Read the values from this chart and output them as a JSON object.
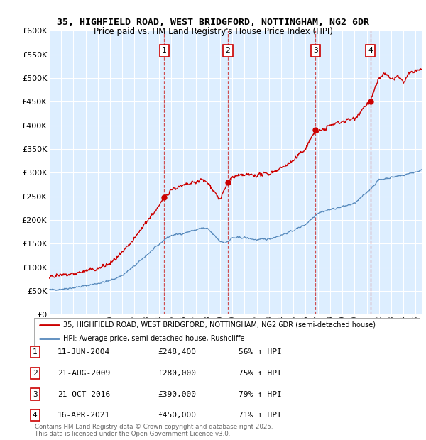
{
  "title_line1": "35, HIGHFIELD ROAD, WEST BRIDGFORD, NOTTINGHAM, NG2 6DR",
  "title_line2": "Price paid vs. HM Land Registry's House Price Index (HPI)",
  "plot_bg_color": "#ddeeff",
  "ylim": [
    0,
    600000
  ],
  "yticks": [
    0,
    50000,
    100000,
    150000,
    200000,
    250000,
    300000,
    350000,
    400000,
    450000,
    500000,
    550000,
    600000
  ],
  "hpi_color": "#5588bb",
  "price_color": "#cc0000",
  "legend_label_price": "35, HIGHFIELD ROAD, WEST BRIDGFORD, NOTTINGHAM, NG2 6DR (semi-detached house)",
  "legend_label_hpi": "HPI: Average price, semi-detached house, Rushcliffe",
  "transactions": [
    {
      "num": 1,
      "date": "11-JUN-2004",
      "price": 248400,
      "pct": "56%",
      "x_year": 2004.44
    },
    {
      "num": 2,
      "date": "21-AUG-2009",
      "price": 280000,
      "pct": "75%",
      "x_year": 2009.64
    },
    {
      "num": 3,
      "date": "21-OCT-2016",
      "price": 390000,
      "pct": "79%",
      "x_year": 2016.8
    },
    {
      "num": 4,
      "date": "16-APR-2021",
      "price": 450000,
      "pct": "71%",
      "x_year": 2021.29
    }
  ],
  "footnote_line1": "Contains HM Land Registry data © Crown copyright and database right 2025.",
  "footnote_line2": "This data is licensed under the Open Government Licence v3.0.",
  "xlim_start": 1995.0,
  "xlim_end": 2025.5,
  "hpi_seed_values": [
    [
      1995.0,
      52000
    ],
    [
      1996.0,
      54000
    ],
    [
      1997.0,
      57000
    ],
    [
      1998.0,
      61000
    ],
    [
      1999.0,
      66000
    ],
    [
      2000.0,
      72000
    ],
    [
      2001.0,
      83000
    ],
    [
      2002.0,
      103000
    ],
    [
      2003.0,
      126000
    ],
    [
      2004.0,
      148000
    ],
    [
      2004.5,
      160000
    ],
    [
      2005.0,
      167000
    ],
    [
      2006.0,
      172000
    ],
    [
      2007.0,
      179000
    ],
    [
      2007.5,
      183000
    ],
    [
      2008.0,
      181000
    ],
    [
      2008.5,
      168000
    ],
    [
      2009.0,
      155000
    ],
    [
      2009.5,
      152000
    ],
    [
      2010.0,
      162000
    ],
    [
      2011.0,
      163000
    ],
    [
      2012.0,
      158000
    ],
    [
      2013.0,
      160000
    ],
    [
      2014.0,
      168000
    ],
    [
      2015.0,
      178000
    ],
    [
      2016.0,
      191000
    ],
    [
      2017.0,
      215000
    ],
    [
      2018.0,
      222000
    ],
    [
      2019.0,
      228000
    ],
    [
      2020.0,
      235000
    ],
    [
      2021.0,
      258000
    ],
    [
      2022.0,
      285000
    ],
    [
      2023.0,
      290000
    ],
    [
      2024.0,
      295000
    ],
    [
      2025.5,
      305000
    ]
  ],
  "price_seed_values": [
    [
      1995.0,
      83000
    ],
    [
      1996.0,
      82000
    ],
    [
      1997.0,
      86000
    ],
    [
      1998.0,
      92000
    ],
    [
      1999.0,
      97000
    ],
    [
      2000.0,
      108000
    ],
    [
      2001.0,
      130000
    ],
    [
      2002.0,
      160000
    ],
    [
      2003.0,
      198000
    ],
    [
      2004.0,
      228000
    ],
    [
      2004.44,
      248400
    ],
    [
      2005.0,
      265000
    ],
    [
      2006.0,
      272000
    ],
    [
      2007.0,
      280000
    ],
    [
      2007.5,
      285000
    ],
    [
      2008.0,
      278000
    ],
    [
      2008.5,
      262000
    ],
    [
      2009.0,
      242000
    ],
    [
      2009.64,
      280000
    ],
    [
      2010.0,
      290000
    ],
    [
      2011.0,
      295000
    ],
    [
      2012.0,
      295000
    ],
    [
      2013.0,
      298000
    ],
    [
      2014.0,
      310000
    ],
    [
      2015.0,
      325000
    ],
    [
      2016.0,
      352000
    ],
    [
      2016.8,
      390000
    ],
    [
      2017.0,
      385000
    ],
    [
      2018.0,
      400000
    ],
    [
      2019.0,
      408000
    ],
    [
      2020.0,
      415000
    ],
    [
      2021.0,
      445000
    ],
    [
      2021.29,
      450000
    ],
    [
      2022.0,
      500000
    ],
    [
      2022.5,
      510000
    ],
    [
      2023.0,
      495000
    ],
    [
      2023.5,
      505000
    ],
    [
      2024.0,
      490000
    ],
    [
      2024.5,
      510000
    ],
    [
      2025.0,
      515000
    ],
    [
      2025.5,
      520000
    ]
  ]
}
